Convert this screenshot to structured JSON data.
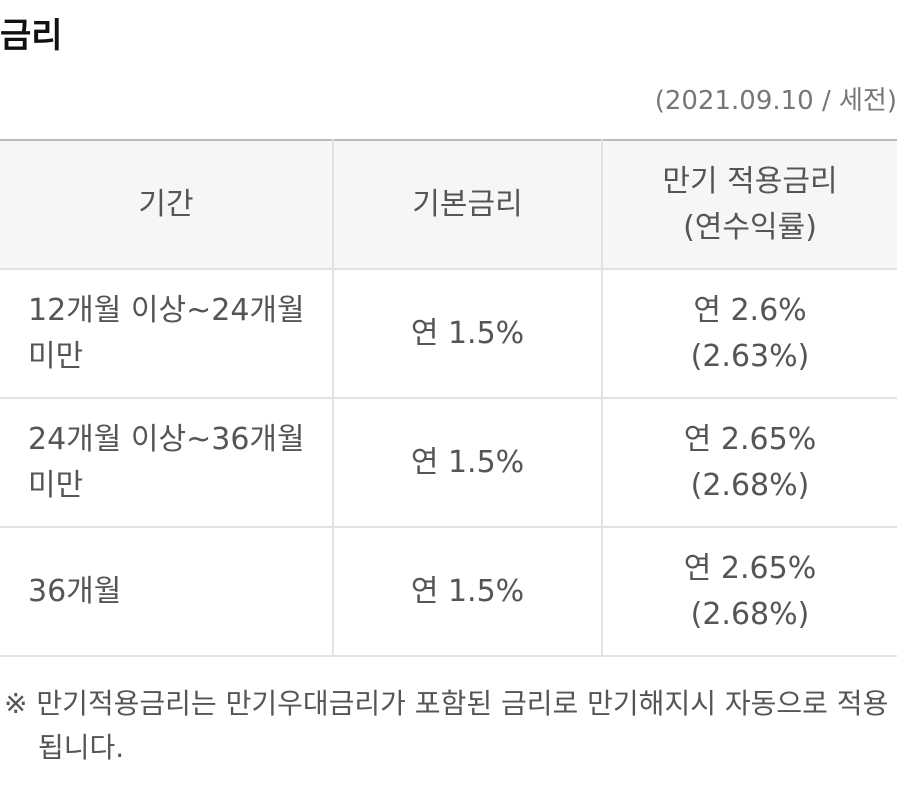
{
  "header": {
    "title": "금리",
    "note": "(2021.09.10 / 세전)"
  },
  "table": {
    "columns": [
      [
        "기간"
      ],
      [
        "기본금리"
      ],
      [
        "만기 적용금리",
        "(연수익률)"
      ]
    ],
    "rows": [
      [
        [
          "12개월 이상~24개월 미만"
        ],
        [
          "연 1.5%"
        ],
        [
          "연 2.6%",
          "(2.63%)"
        ]
      ],
      [
        [
          "24개월 이상~36개월 미만"
        ],
        [
          "연 1.5%"
        ],
        [
          "연 2.65%",
          "(2.68%)"
        ]
      ],
      [
        [
          "36개월"
        ],
        [
          "연 1.5%"
        ],
        [
          "연 2.65%",
          "(2.68%)"
        ]
      ]
    ]
  },
  "footnote": "※ 만기적용금리는 만기우대금리가 포함된 금리로 만기해지시 자동으로 적용됩니다."
}
